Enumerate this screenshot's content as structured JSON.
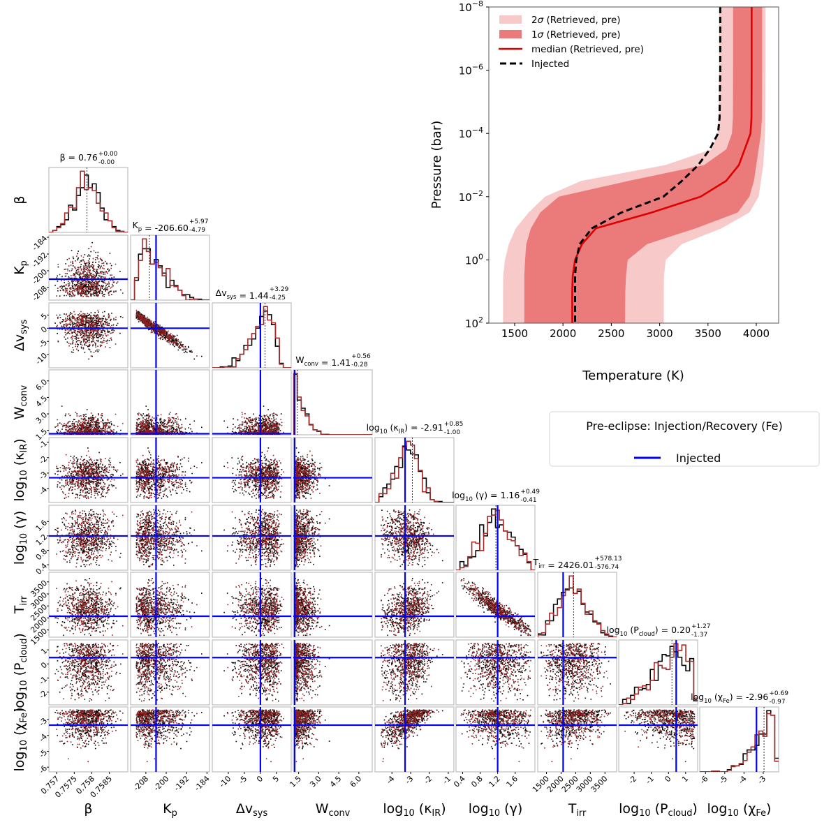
{
  "chart_data": [
    {
      "type": "scatter",
      "subtype": "corner",
      "legend": {
        "title": "Pre-eclipse: Injection/Recovery (Fe)",
        "entries": [
          "Injected"
        ],
        "placement": "middle-right"
      },
      "colors": {
        "set_a": "#000000",
        "set_b": "#8b1e1e",
        "injected": "#0000ff"
      },
      "params": [
        {
          "label": [
            {
              "t": "β"
            }
          ],
          "median": "0.76",
          "err_plus": "+0.00",
          "err_minus": "-0.00",
          "center": 0.75786,
          "spread": [
            0.00035,
            0.00035
          ],
          "range": [
            0.75678,
            0.75902
          ],
          "ticks": [
            "0.757",
            "0.7575",
            "0.758",
            "0.7585"
          ],
          "tick_values": [
            0.757,
            0.7575,
            0.758,
            0.7585
          ],
          "injected": null,
          "bounds": null,
          "corr": []
        },
        {
          "label": [
            {
              "t": "K"
            },
            {
              "t": "p",
              "s": true
            }
          ],
          "median": "-206.60",
          "err_plus": "+5.97",
          "err_minus": "-4.79",
          "center": -206.6,
          "spread": [
            4.2,
            6.5
          ],
          "range": [
            -214,
            -183
          ],
          "ticks": [
            "-208",
            "-200",
            "-192",
            "-184"
          ],
          "tick_values": [
            -208,
            -200,
            -192,
            -184
          ],
          "injected": -204,
          "bounds": [
            -212,
            -183
          ],
          "corr": []
        },
        {
          "label": [
            {
              "t": "Δv"
            },
            {
              "t": "sys",
              "s": true
            }
          ],
          "median": "1.44",
          "err_plus": "+3.29",
          "err_minus": "-4.25",
          "center": 1.44,
          "spread": [
            4.25,
            3.29
          ],
          "range": [
            -15,
            9.6
          ],
          "ticks": [
            "-10",
            "-5",
            "0",
            "5"
          ],
          "tick_values": [
            -10,
            -5,
            0,
            5
          ],
          "injected": 0,
          "bounds": [
            -14.5,
            9
          ],
          "corr": [
            [
              1,
              -0.97
            ]
          ]
        },
        {
          "label": [
            {
              "t": "W"
            },
            {
              "t": "conv",
              "s": true
            }
          ],
          "median": "1.41",
          "err_plus": "+0.56",
          "err_minus": "-0.28",
          "center": 1.41,
          "spread": [
            0.28,
            0.7
          ],
          "range": [
            1.1,
            7.0
          ],
          "ticks": [
            "1.5",
            "3.0",
            "4.5",
            "6.0"
          ],
          "tick_values": [
            1.5,
            3.0,
            4.5,
            6.0
          ],
          "injected": 1.2,
          "bounds": [
            1.15,
            6.8
          ],
          "corr": []
        },
        {
          "label": [
            {
              "t": "log"
            },
            {
              "t": "10",
              "s": true
            },
            {
              "t": " (κ"
            },
            {
              "t": "IR",
              "s": true
            },
            {
              "t": ")"
            }
          ],
          "median": "-2.91",
          "err_plus": "+0.85",
          "err_minus": "-1.00",
          "center": -2.91,
          "spread": [
            0.85,
            0.75
          ],
          "range": [
            -4.9,
            -0.7
          ],
          "ticks": [
            "-4",
            "-3",
            "-2",
            "-1"
          ],
          "tick_values": [
            -4,
            -3,
            -2,
            -1
          ],
          "injected": -3.3,
          "bounds": [
            -4.6,
            -1.0
          ],
          "corr": []
        },
        {
          "label": [
            {
              "t": "log"
            },
            {
              "t": "10",
              "s": true
            },
            {
              "t": " (γ)"
            }
          ],
          "median": "1.16",
          "err_plus": "+0.49",
          "err_minus": "-0.41",
          "center": 1.16,
          "spread": [
            0.38,
            0.45
          ],
          "range": [
            0.25,
            2.05
          ],
          "ticks": [
            "0.4",
            "0.8",
            "1.2",
            "1.6"
          ],
          "tick_values": [
            0.4,
            0.8,
            1.2,
            1.6
          ],
          "injected": 1.2,
          "bounds": [
            0.35,
            1.95
          ],
          "corr": [
            [
              4,
              -0.3
            ]
          ]
        },
        {
          "label": [
            {
              "t": "T"
            },
            {
              "t": "irr",
              "s": true
            }
          ],
          "median": "2426.01",
          "err_plus": "+578.13",
          "err_minus": "-576.74",
          "center": 2426,
          "spread": [
            560,
            560
          ],
          "range": [
            1200,
            3900
          ],
          "ticks": [
            "1500",
            "2000",
            "2500",
            "3000",
            "3500"
          ],
          "tick_values": [
            1500,
            2000,
            2500,
            3000,
            3500
          ],
          "injected": 2070,
          "bounds": [
            1300,
            3800
          ],
          "corr": [
            [
              5,
              -0.94
            ],
            [
              4,
              0.2
            ]
          ]
        },
        {
          "label": [
            {
              "t": "log"
            },
            {
              "t": "10",
              "s": true
            },
            {
              "t": " (P"
            },
            {
              "t": "cloud",
              "s": true
            },
            {
              "t": ")"
            }
          ],
          "median": "0.20",
          "err_plus": "+1.27",
          "err_minus": "-1.37",
          "center": 0.4,
          "spread": [
            1.6,
            1.6
          ],
          "range": [
            -2.9,
            1.7
          ],
          "ticks": [
            "-2",
            "-1",
            "0",
            "1"
          ],
          "tick_values": [
            -2,
            -1,
            0,
            1
          ],
          "injected": 0.45,
          "bounds": [
            -2.6,
            1.5
          ],
          "corr": []
        },
        {
          "label": [
            {
              "t": "log"
            },
            {
              "t": "10",
              "s": true
            },
            {
              "t": " (χ"
            },
            {
              "t": "Fe",
              "s": true
            },
            {
              "t": ")"
            }
          ],
          "median": "-2.96",
          "err_plus": "+0.69",
          "err_minus": "-0.97",
          "center": -2.8,
          "spread": [
            1.0,
            0.7
          ],
          "range": [
            -6.3,
            -2.2
          ],
          "ticks": [
            "-6",
            "-5",
            "-4",
            "-3"
          ],
          "tick_values": [
            -6,
            -5,
            -4,
            -3
          ],
          "injected": -3.35,
          "bounds": [
            -6.1,
            -2.35
          ],
          "corr": [
            [
              4,
              0.75
            ],
            [
              7,
              -0.45
            ]
          ]
        }
      ]
    },
    {
      "type": "area",
      "subtype": "temperature-pressure profile",
      "xlabel": "Temperature (K)",
      "ylabel": "Pressure (bar)",
      "xlim": [
        1233,
        4231
      ],
      "ylim_log10": [
        2,
        -8
      ],
      "x_ticks": [
        "1500",
        "2000",
        "2500",
        "3000",
        "3500",
        "4000"
      ],
      "x_tick_values": [
        1500,
        2000,
        2500,
        3000,
        3500,
        4000
      ],
      "y_ticks": [
        {
          "base": "10",
          "exp": "-8",
          "v": -8
        },
        {
          "base": "10",
          "exp": "-6",
          "v": -6
        },
        {
          "base": "10",
          "exp": "-4",
          "v": -4
        },
        {
          "base": "10",
          "exp": "-2",
          "v": -2
        },
        {
          "base": "10",
          "exp": "0",
          "v": 0
        },
        {
          "base": "10",
          "exp": "2",
          "v": 2
        }
      ],
      "legend": {
        "placement": "top-left",
        "entries": [
          {
            "pre": "2",
            "sym": "σ",
            "post": " (Retrieved, pre)",
            "kind": "band2"
          },
          {
            "pre": "1",
            "sym": "σ",
            "post": " (Retrieved, pre)",
            "kind": "band1"
          },
          {
            "pre": "median (Retrieved, pre)",
            "sym": "",
            "post": "",
            "kind": "median"
          },
          {
            "pre": "Injected",
            "sym": "",
            "post": "",
            "kind": "injected"
          }
        ]
      },
      "colors": {
        "band2": "#f7c9c9",
        "band1": "#eb7b7b",
        "median": "#dd0000",
        "injected": "#000000"
      },
      "log10_pressure": [
        -8,
        -6,
        -4.5,
        -4,
        -3.5,
        -3,
        -2.5,
        -2,
        -1.5,
        -1,
        -0.5,
        0,
        0.5,
        1,
        2
      ],
      "series": [
        {
          "name": "2σ low",
          "values": [
            3615,
            3615,
            3612,
            3600,
            3540,
            3060,
            2190,
            1815,
            1645,
            1512,
            1440,
            1400,
            1382,
            1380,
            1380
          ]
        },
        {
          "name": "1σ low",
          "values": [
            3760,
            3760,
            3758,
            3748,
            3690,
            3460,
            2680,
            1957,
            1765,
            1668,
            1620,
            1608,
            1600,
            1600,
            1600
          ]
        },
        {
          "name": "1σ high",
          "values": [
            4060,
            4060,
            4058,
            4048,
            4024,
            4000,
            3976,
            3928,
            3808,
            3375,
            2870,
            2670,
            2652,
            2645,
            2642
          ]
        },
        {
          "name": "2σ high",
          "values": [
            4096,
            4096,
            4094,
            4090,
            4082,
            4072,
            4048,
            4024,
            3928,
            3640,
            3230,
            3063,
            3045,
            3043,
            3043
          ]
        },
        {
          "name": "median (Retrieved, pre)",
          "values": [
            3952,
            3952,
            3950,
            3940,
            3880,
            3820,
            3688,
            3423,
            2918,
            2341,
            2197,
            2125,
            2101,
            2096,
            2096
          ]
        },
        {
          "name": "Injected",
          "values": [
            3627,
            3627,
            3620,
            3604,
            3519,
            3399,
            3231,
            3039,
            2606,
            2300,
            2173,
            2137,
            2125,
            2125,
            2125
          ]
        }
      ]
    }
  ]
}
